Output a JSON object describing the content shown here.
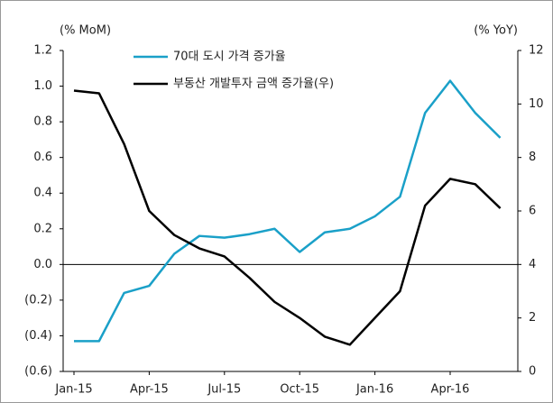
{
  "chart_data": {
    "type": "line",
    "y_label": "(% MoM)",
    "y2_label": "(% YoY)",
    "categories": [
      "Jan-15",
      null,
      null,
      "Apr-15",
      null,
      null,
      "Jul-15",
      null,
      null,
      "Oct-15",
      null,
      null,
      "Jan-16",
      null,
      null,
      "Apr-16",
      null,
      null
    ],
    "series": [
      {
        "name": "70대 도시 가격 증가율",
        "color": "#1aa0c8",
        "axis": "y",
        "values": [
          -0.43,
          -0.43,
          -0.16,
          -0.12,
          0.06,
          0.16,
          0.15,
          0.17,
          0.2,
          0.07,
          0.18,
          0.2,
          0.27,
          0.38,
          0.85,
          1.03,
          0.85,
          0.71
        ]
      },
      {
        "name": "부동산 개발투자 금액 증가율(우)",
        "color": "#000000",
        "axis": "y2",
        "values": [
          10.5,
          10.4,
          8.5,
          6.0,
          5.1,
          4.6,
          4.3,
          3.5,
          2.6,
          2.0,
          1.3,
          1.0,
          2.0,
          3.0,
          6.2,
          7.2,
          7.0,
          6.1
        ]
      }
    ],
    "ylim": [
      -0.6,
      1.2
    ],
    "yticks": [
      {
        "value": -0.6,
        "label": "(0.6)"
      },
      {
        "value": -0.4,
        "label": "(0.4)"
      },
      {
        "value": -0.2,
        "label": "(0.2)"
      },
      {
        "value": 0,
        "label": "0.0"
      },
      0.2,
      0.4,
      0.6,
      0.8,
      {
        "value": 1,
        "label": "1.0"
      },
      1.2
    ],
    "y2lim": [
      0,
      12
    ],
    "y2ticks": [
      0,
      2,
      4,
      6,
      8,
      10,
      12
    ],
    "zero_line": true
  }
}
